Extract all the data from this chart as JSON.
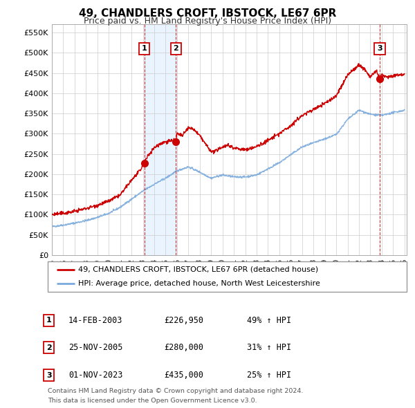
{
  "title": "49, CHANDLERS CROFT, IBSTOCK, LE67 6PR",
  "subtitle": "Price paid vs. HM Land Registry's House Price Index (HPI)",
  "xlim": [
    1995.0,
    2026.2
  ],
  "ylim": [
    0,
    570000
  ],
  "yticks": [
    0,
    50000,
    100000,
    150000,
    200000,
    250000,
    300000,
    350000,
    400000,
    450000,
    500000,
    550000
  ],
  "ytick_labels": [
    "£0",
    "£50K",
    "£100K",
    "£150K",
    "£200K",
    "£250K",
    "£300K",
    "£350K",
    "£400K",
    "£450K",
    "£500K",
    "£550K"
  ],
  "xtick_years": [
    1995,
    1996,
    1997,
    1998,
    1999,
    2000,
    2001,
    2002,
    2003,
    2004,
    2005,
    2006,
    2007,
    2008,
    2009,
    2010,
    2011,
    2012,
    2013,
    2014,
    2015,
    2016,
    2017,
    2018,
    2019,
    2020,
    2021,
    2022,
    2023,
    2024,
    2025,
    2026
  ],
  "legend_property": "49, CHANDLERS CROFT, IBSTOCK, LE67 6PR (detached house)",
  "legend_hpi": "HPI: Average price, detached house, North West Leicestershire",
  "property_color": "#cc0000",
  "hpi_color": "#7aaadd",
  "sale1_date": "14-FEB-2003",
  "sale1_price": 226950,
  "sale2_date": "25-NOV-2005",
  "sale2_price": 280000,
  "sale3_date": "01-NOV-2023",
  "sale3_price": 435000,
  "sale1_pct": "49% ↑ HPI",
  "sale2_pct": "31% ↑ HPI",
  "sale3_pct": "25% ↑ HPI",
  "footnote1": "Contains HM Land Registry data © Crown copyright and database right 2024.",
  "footnote2": "This data is licensed under the Open Government Licence v3.0.",
  "background_color": "#ffffff",
  "grid_color": "#cccccc",
  "shade1_color": "#ddeeff",
  "shade1_x1": 2003.11,
  "shade1_x2": 2006.0,
  "shade2_x1": 2023.83,
  "shade2_x2": 2026.2
}
